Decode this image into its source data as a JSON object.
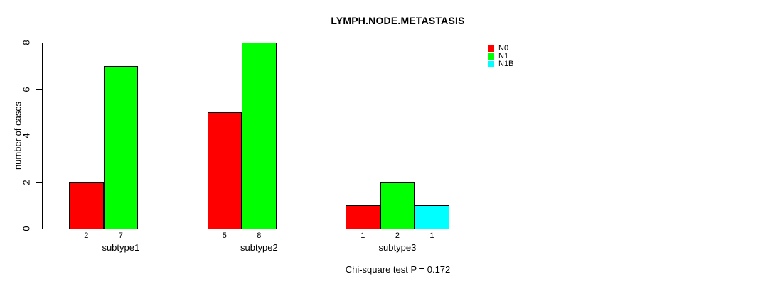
{
  "chart_data": {
    "type": "bar",
    "title": "LYMPH.NODE.METASTASIS",
    "ylabel": "number of cases",
    "xlabel": "",
    "categories": [
      "subtype1",
      "subtype2",
      "subtype3"
    ],
    "series": [
      {
        "name": "N0",
        "color": "#ff0000",
        "values": [
          2,
          5,
          1
        ]
      },
      {
        "name": "N1",
        "color": "#00ff00",
        "values": [
          7,
          8,
          2
        ]
      },
      {
        "name": "N1B",
        "color": "#00ffff",
        "values": [
          0,
          0,
          1
        ]
      }
    ],
    "ylim": [
      0,
      8
    ],
    "yticks": [
      0,
      2,
      4,
      6,
      8
    ],
    "grid": false,
    "legend_position": "top-right",
    "bar_value_labels_visible": true,
    "footnote": "Chi-square test P = 0.172"
  }
}
